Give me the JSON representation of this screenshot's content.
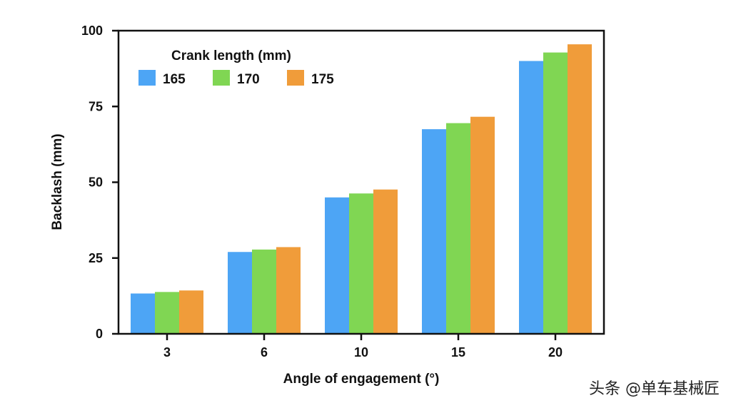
{
  "chart_data": {
    "type": "bar",
    "title": "",
    "xlabel": "Angle of engagement (°)",
    "ylabel": "Backlash (mm)",
    "ylim": [
      0,
      100
    ],
    "yticks": [
      0,
      25,
      50,
      75,
      100
    ],
    "categories": [
      "3",
      "6",
      "10",
      "15",
      "20"
    ],
    "legend_title": "Crank length (mm)",
    "legend_position": "top-left",
    "grid": false,
    "series": [
      {
        "name": "165",
        "color": "#4da5f5",
        "values": [
          13.3,
          27.0,
          45.0,
          67.5,
          90.0
        ]
      },
      {
        "name": "170",
        "color": "#80d653",
        "values": [
          13.8,
          27.8,
          46.3,
          69.5,
          92.8
        ]
      },
      {
        "name": "175",
        "color": "#f09c3a",
        "values": [
          14.3,
          28.6,
          47.6,
          71.6,
          95.5
        ]
      }
    ]
  },
  "watermark": "头条 @单车基械匠"
}
